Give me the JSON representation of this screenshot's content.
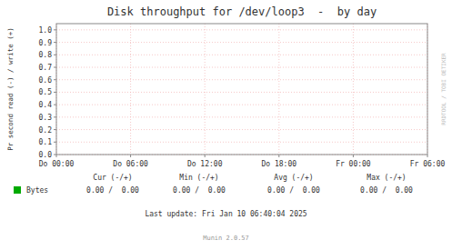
{
  "chart_data": {
    "type": "line",
    "title": "Disk throughput for /dev/loop3  -  by day",
    "y_label": "Pr second read (-) / write (+)",
    "x": [],
    "series": [
      {
        "name": "Bytes",
        "color": "#00aa00",
        "values": []
      }
    ],
    "xlim": [
      0,
      5
    ],
    "xticks": [
      {
        "value": 0,
        "label": "Do 00:00"
      },
      {
        "value": 1,
        "label": "Do 06:00"
      },
      {
        "value": 2,
        "label": "Do 12:00"
      },
      {
        "value": 3,
        "label": "Do 18:00"
      },
      {
        "value": 4,
        "label": "Fr 00:00"
      },
      {
        "value": 5,
        "label": "Fr 06:00"
      }
    ],
    "ylim": [
      0.0,
      1.05
    ],
    "yticks": [
      {
        "value": 0.0,
        "label": "0.0"
      },
      0.1,
      0.2,
      0.3,
      0.4,
      0.5,
      0.6,
      0.7,
      0.8,
      0.9,
      {
        "value": 1.0,
        "label": "1.0"
      }
    ],
    "grid": true,
    "annotations": [
      "Cur (-/+)",
      "Min (-/+)",
      "Avg (-/+)",
      "Max (-/+)",
      "0.00 /  0.00",
      "0.00 /  0.00",
      "0.00 /  0.00",
      "0.00 /  0.00",
      "Last update: Fri Jan 10 06:40:04 2025",
      "Munin 2.0.57",
      "RRDTOOL / TOBI OETIKER"
    ]
  }
}
